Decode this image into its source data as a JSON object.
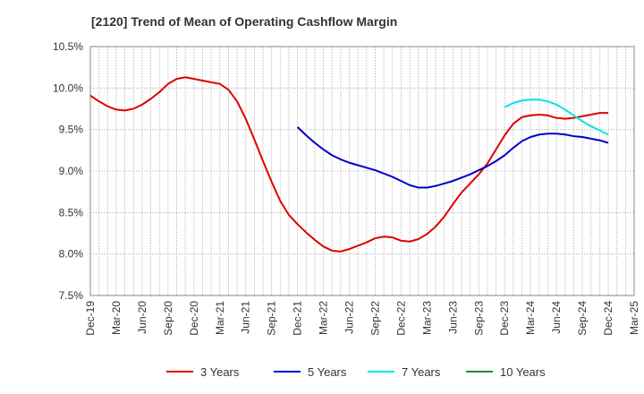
{
  "chart_data": {
    "type": "line",
    "title": "[2120]  Trend of Mean of Operating Cashflow Margin",
    "xlabel": "",
    "ylabel": "",
    "ylim": [
      7.5,
      10.5
    ],
    "y_ticks": [
      "10.5%",
      "10.0%",
      "9.5%",
      "9.0%",
      "8.5%",
      "8.0%",
      "7.5%"
    ],
    "y_tick_values": [
      10.5,
      10.0,
      9.5,
      9.0,
      8.5,
      8.0,
      7.5
    ],
    "x_ticks": [
      "Dec-19",
      "Mar-20",
      "Jun-20",
      "Sep-20",
      "Dec-20",
      "Mar-21",
      "Jun-21",
      "Sep-21",
      "Dec-21",
      "Mar-22",
      "Jun-22",
      "Sep-22",
      "Dec-22",
      "Mar-23",
      "Jun-23",
      "Sep-23",
      "Dec-23",
      "Mar-24",
      "Jun-24",
      "Sep-24",
      "Dec-24",
      "Mar-25"
    ],
    "grid": true,
    "legend_position": "bottom",
    "series": [
      {
        "name": "3 Years",
        "color": "#dd0000",
        "x": [
          "Dec-19",
          "Jan-20",
          "Feb-20",
          "Mar-20",
          "Apr-20",
          "May-20",
          "Jun-20",
          "Jul-20",
          "Aug-20",
          "Sep-20",
          "Oct-20",
          "Nov-20",
          "Dec-20",
          "Jan-21",
          "Feb-21",
          "Mar-21",
          "Apr-21",
          "May-21",
          "Jun-21",
          "Jul-21",
          "Aug-21",
          "Sep-21",
          "Oct-21",
          "Nov-21",
          "Dec-21",
          "Jan-22",
          "Feb-22",
          "Mar-22",
          "Apr-22",
          "May-22",
          "Jun-22",
          "Jul-22",
          "Aug-22",
          "Sep-22",
          "Oct-22",
          "Nov-22",
          "Dec-22",
          "Jan-23",
          "Feb-23",
          "Mar-23",
          "Apr-23",
          "May-23",
          "Jun-23",
          "Jul-23",
          "Aug-23",
          "Sep-23",
          "Oct-23",
          "Nov-23",
          "Dec-23",
          "Jan-24",
          "Feb-24",
          "Mar-24",
          "Apr-24",
          "May-24",
          "Jun-24",
          "Jul-24",
          "Aug-24",
          "Sep-24",
          "Oct-24",
          "Nov-24",
          "Dec-24"
        ],
        "values": [
          9.91,
          9.84,
          9.78,
          9.74,
          9.73,
          9.75,
          9.8,
          9.87,
          9.95,
          10.05,
          10.11,
          10.13,
          10.11,
          10.09,
          10.07,
          10.05,
          9.98,
          9.84,
          9.63,
          9.38,
          9.12,
          8.87,
          8.64,
          8.47,
          8.36,
          8.26,
          8.17,
          8.09,
          8.04,
          8.03,
          8.06,
          8.1,
          8.14,
          8.19,
          8.21,
          8.2,
          8.16,
          8.15,
          8.18,
          8.24,
          8.33,
          8.45,
          8.6,
          8.74,
          8.85,
          8.96,
          9.09,
          9.26,
          9.43,
          9.57,
          9.65,
          9.67,
          9.68,
          9.67,
          9.64,
          9.63,
          9.64,
          9.66,
          9.68,
          9.7,
          9.7
        ]
      },
      {
        "name": "5 Years",
        "color": "#0000cc",
        "x": [
          "Dec-21",
          "Jan-22",
          "Feb-22",
          "Mar-22",
          "Apr-22",
          "May-22",
          "Jun-22",
          "Jul-22",
          "Aug-22",
          "Sep-22",
          "Oct-22",
          "Nov-22",
          "Dec-22",
          "Jan-23",
          "Feb-23",
          "Mar-23",
          "Apr-23",
          "May-23",
          "Jun-23",
          "Jul-23",
          "Aug-23",
          "Sep-23",
          "Oct-23",
          "Nov-23",
          "Dec-23",
          "Jan-24",
          "Feb-24",
          "Mar-24",
          "Apr-24",
          "May-24",
          "Jun-24",
          "Jul-24",
          "Aug-24",
          "Sep-24",
          "Oct-24",
          "Nov-24",
          "Dec-24"
        ],
        "values": [
          9.53,
          9.43,
          9.34,
          9.26,
          9.19,
          9.14,
          9.1,
          9.07,
          9.04,
          9.01,
          8.97,
          8.93,
          8.88,
          8.83,
          8.8,
          8.8,
          8.82,
          8.85,
          8.88,
          8.92,
          8.96,
          9.01,
          9.06,
          9.12,
          9.19,
          9.28,
          9.36,
          9.41,
          9.44,
          9.45,
          9.45,
          9.44,
          9.42,
          9.41,
          9.39,
          9.37,
          9.34
        ]
      },
      {
        "name": "7 Years",
        "color": "#00e5e5",
        "x": [
          "Dec-23",
          "Jan-24",
          "Feb-24",
          "Mar-24",
          "Apr-24",
          "May-24",
          "Jun-24",
          "Jul-24",
          "Aug-24",
          "Sep-24",
          "Oct-24",
          "Nov-24",
          "Dec-24"
        ],
        "values": [
          9.77,
          9.82,
          9.85,
          9.86,
          9.86,
          9.84,
          9.8,
          9.74,
          9.67,
          9.6,
          9.54,
          9.49,
          9.44
        ]
      },
      {
        "name": "10 Years",
        "color": "#228b22",
        "x": [],
        "values": []
      }
    ]
  }
}
